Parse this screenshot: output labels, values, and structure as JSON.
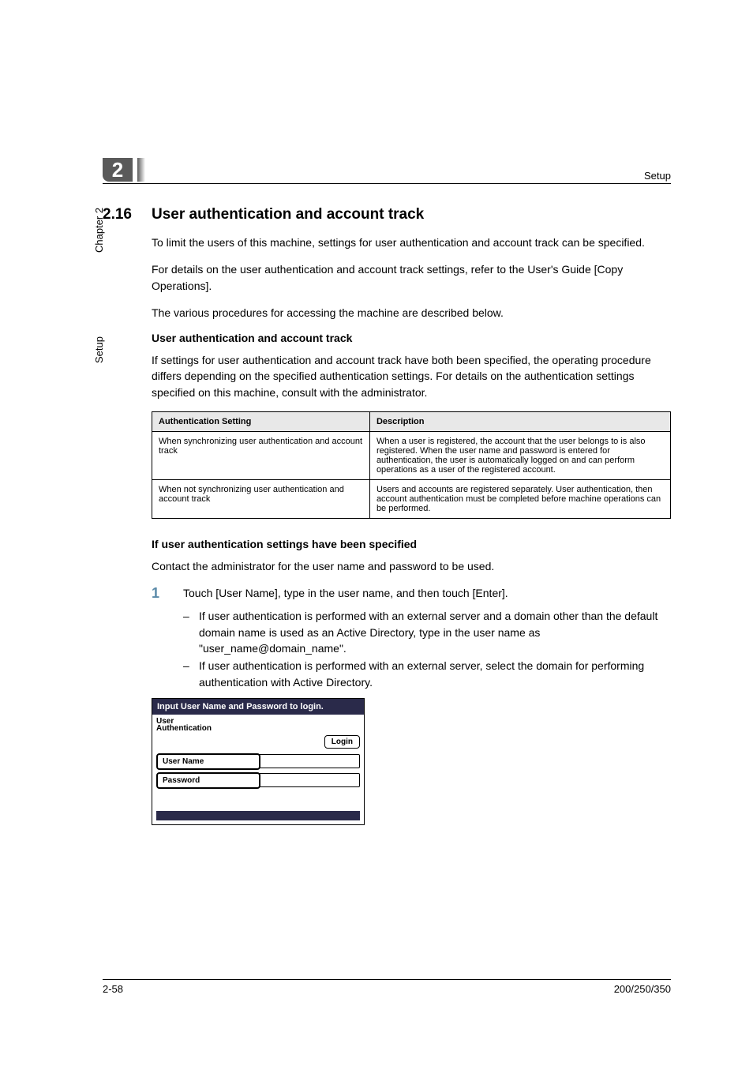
{
  "header": {
    "chapter_badge": "2",
    "right_label": "Setup"
  },
  "sidebar": {
    "chapter_label": "Chapter 2",
    "section_label": "Setup"
  },
  "section": {
    "number": "2.16",
    "title": "User authentication and account track"
  },
  "paragraphs": {
    "p1": "To limit the users of this machine, settings for user authentication and account track can be specified.",
    "p2": "For details on the user authentication and account track settings, refer to the User's Guide [Copy Operations].",
    "p3": "The various procedures for accessing the machine are described below."
  },
  "subhead1": "User authentication and account track",
  "p4": "If settings for user authentication and account track have both been specified, the operating procedure differs depending on the specified authentication settings. For details on the authentication settings specified on this machine, consult with the administrator.",
  "table": {
    "headers": [
      "Authentication Setting",
      "Description"
    ],
    "rows": [
      [
        "When synchronizing user authentication and account track",
        "When a user is registered, the account that the user belongs to is also registered. When the user name and password is entered for authentication, the user is automatically logged on and can perform operations as a user of the registered account."
      ],
      [
        "When not synchronizing user authentication and account track",
        "Users and accounts are registered separately. User authentication, then account authentication must be completed before machine operations can be performed."
      ]
    ]
  },
  "subhead2": "If user authentication settings have been specified",
  "p5": "Contact the administrator for the user name and password to be used.",
  "step": {
    "num": "1",
    "text": "Touch [User Name], type in the user name, and then touch [Enter].",
    "subs": [
      "If user authentication is performed with an external server and a domain other than the default domain name is used as an Active Directory, type in the user name as \"user_name@domain_name\".",
      "If user authentication is performed with an external server, select the domain for performing authentication with Active Directory."
    ]
  },
  "login": {
    "title": "Input User Name and Password to login.",
    "label_line1": "User",
    "label_line2": "Authentication",
    "login_btn": "Login",
    "username_btn": "User Name",
    "password_btn": "Password"
  },
  "footer": {
    "left": "2-58",
    "right": "200/250/350"
  },
  "colors": {
    "badge_bg": "#5a5a5a",
    "step_num": "#5a8aa8",
    "panel_dark": "#2a2a4a",
    "th_bg": "#e8e8e8"
  }
}
